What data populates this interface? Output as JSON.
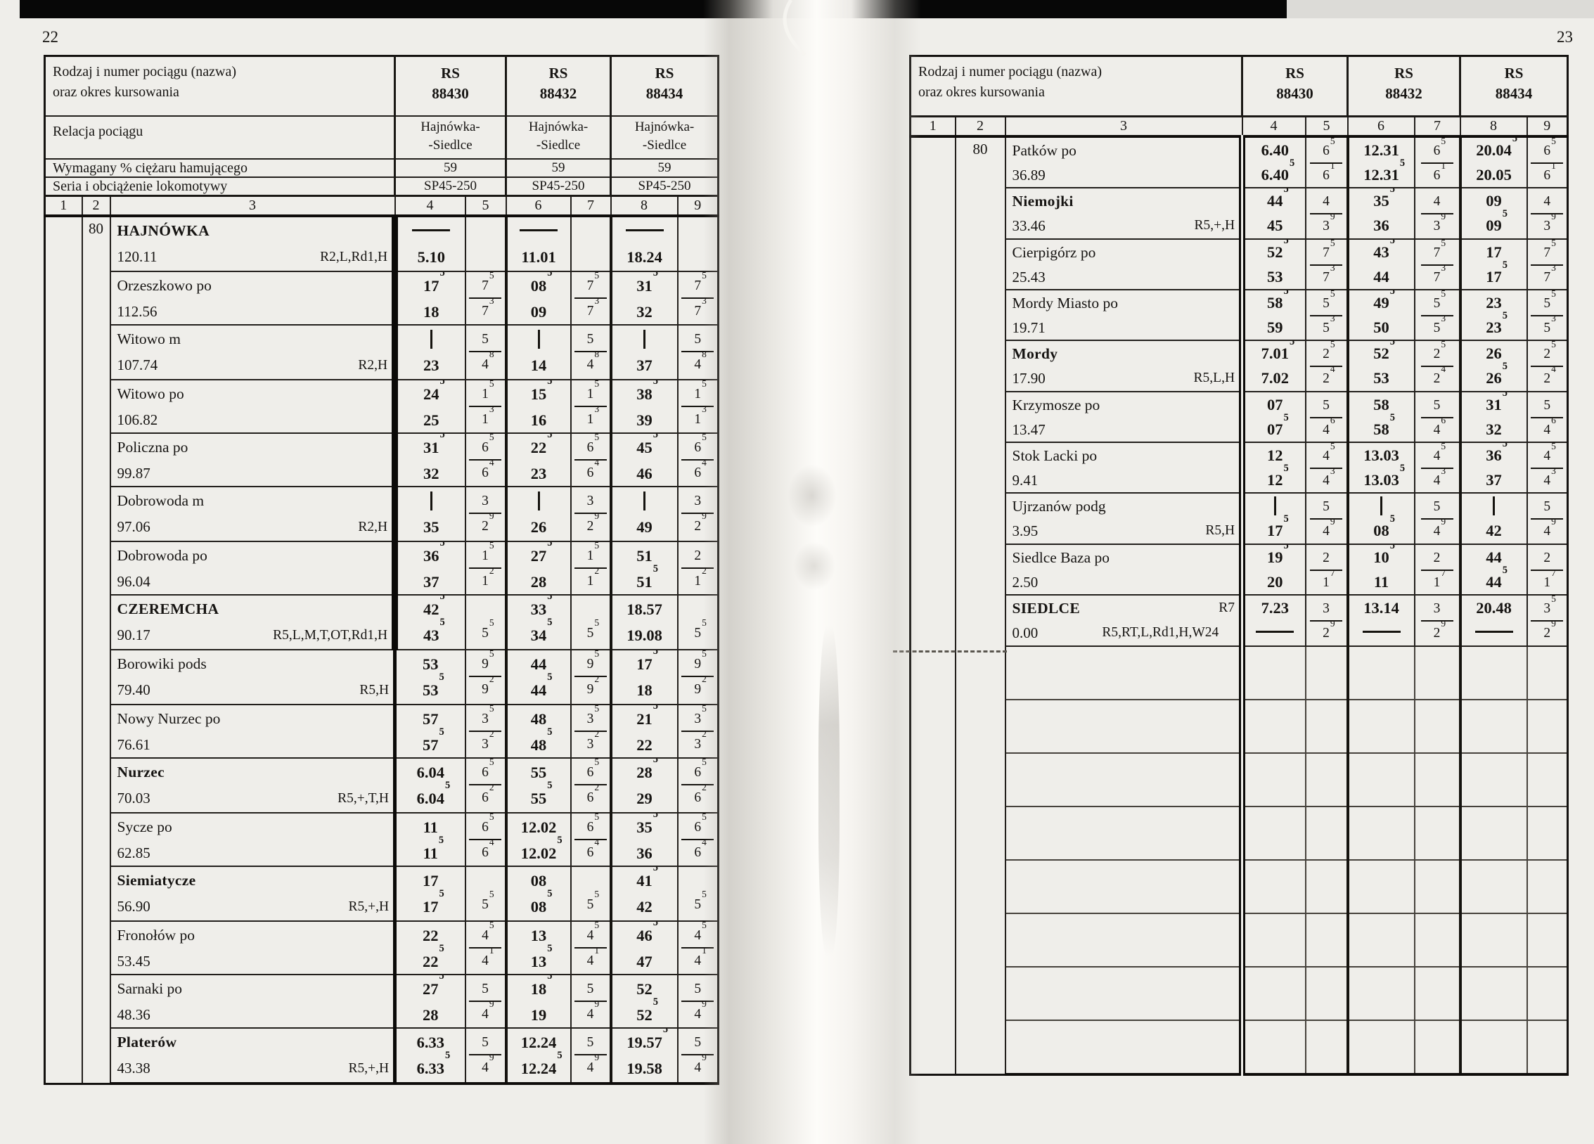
{
  "scan": {
    "left_page_number": "22",
    "right_page_number": "23"
  },
  "page_left": {
    "header": {
      "label_line1": "Rodzaj i numer pociągu (nazwa)",
      "label_line2": "oraz okres kursowania",
      "trains": [
        {
          "cls": "RS",
          "num": "88430"
        },
        {
          "cls": "RS",
          "num": "88432"
        },
        {
          "cls": "RS",
          "num": "88434"
        }
      ],
      "relacja_label": "Relacja pociągu",
      "relacja": [
        [
          "Hajnówka-",
          "-Siedlce"
        ],
        [
          "Hajnówka-",
          "-Siedlce"
        ],
        [
          "Hajnówka-",
          "-Siedlce"
        ]
      ],
      "brake_label": "Wymagany % ciężaru hamującego",
      "brake": [
        "59",
        "59",
        "59"
      ],
      "loco_label": "Seria i obciążenie lokomotywy",
      "loco": [
        "SP45-250",
        "SP45-250",
        "SP45-250"
      ],
      "col_numbers": [
        "1",
        "2",
        "3",
        "4",
        "5",
        "6",
        "7",
        "8",
        "9"
      ]
    },
    "line_number": "80",
    "rows": [
      {
        "name": "HAJNÓWKA",
        "bold": true,
        "name_remark": "",
        "km": "120.11",
        "km_remark": "R2,L,Rd1,H",
        "t": [
          [
            "——",
            "5.10"
          ],
          [
            "",
            ""
          ],
          [
            "——",
            "11.01"
          ],
          [
            "",
            ""
          ],
          [
            "——",
            "18.24"
          ],
          [
            "",
            ""
          ]
        ]
      },
      {
        "name": "Orzeszkowo po",
        "bold": false,
        "name_remark": "",
        "km": "112.56",
        "km_remark": "",
        "t": [
          [
            "17^5",
            "18"
          ],
          [
            "7^5",
            "7^3"
          ],
          [
            "08^5",
            "09"
          ],
          [
            "7^5",
            "7^3"
          ],
          [
            "31^5",
            "32"
          ],
          [
            "7^5",
            "7^3"
          ]
        ]
      },
      {
        "name": "Witowo m",
        "bold": false,
        "name_remark": "",
        "km": "107.74",
        "km_remark": "R2,H",
        "t": [
          [
            "|",
            "23"
          ],
          [
            "5",
            "4^8"
          ],
          [
            "|",
            "14"
          ],
          [
            "5",
            "4^8"
          ],
          [
            "|",
            "37"
          ],
          [
            "5",
            "4^8"
          ]
        ]
      },
      {
        "name": "Witowo po",
        "bold": false,
        "name_remark": "",
        "km": "106.82",
        "km_remark": "",
        "t": [
          [
            "24^5",
            "25"
          ],
          [
            "1^5",
            "1^3"
          ],
          [
            "15^5",
            "16"
          ],
          [
            "1^5",
            "1^3"
          ],
          [
            "38^5",
            "39"
          ],
          [
            "1^5",
            "1^3"
          ]
        ]
      },
      {
        "name": "Policzna po",
        "bold": false,
        "name_remark": "",
        "km": "99.87",
        "km_remark": "",
        "t": [
          [
            "31^5",
            "32"
          ],
          [
            "6^5",
            "6^4"
          ],
          [
            "22^5",
            "23"
          ],
          [
            "6^5",
            "6^4"
          ],
          [
            "45^5",
            "46"
          ],
          [
            "6^5",
            "6^4"
          ]
        ]
      },
      {
        "name": "Dobrowoda m",
        "bold": false,
        "name_remark": "",
        "km": "97.06",
        "km_remark": "R2,H",
        "t": [
          [
            "|",
            "35"
          ],
          [
            "3",
            "2^9"
          ],
          [
            "|",
            "26"
          ],
          [
            "3",
            "2^9"
          ],
          [
            "|",
            "49"
          ],
          [
            "3",
            "2^9"
          ]
        ]
      },
      {
        "name": "Dobrowoda po",
        "bold": false,
        "name_remark": "",
        "km": "96.04",
        "km_remark": "",
        "t": [
          [
            "36^5",
            "37"
          ],
          [
            "1^5",
            "1^2"
          ],
          [
            "27^5",
            "28"
          ],
          [
            "1^5",
            "1^2"
          ],
          [
            "51",
            "51^5"
          ],
          [
            "2",
            "1^2"
          ]
        ]
      },
      {
        "name": "CZEREMCHA",
        "bold": true,
        "name_remark": "",
        "km": "90.17",
        "km_remark": "R5,L,M,T,OT,Rd1,H",
        "t": [
          [
            "42^5",
            "43^5"
          ],
          [
            "",
            "5^5"
          ],
          [
            "33^5",
            "34^5"
          ],
          [
            "",
            "5^5"
          ],
          [
            "18.57",
            "19.08"
          ],
          [
            "",
            "5^5"
          ]
        ]
      },
      {
        "name": "Borowiki pods",
        "bold": false,
        "name_remark": "",
        "km": "79.40",
        "km_remark": "R5,H",
        "t": [
          [
            "53",
            "53^5"
          ],
          [
            "9^5",
            "9^2"
          ],
          [
            "44",
            "44^5"
          ],
          [
            "9^5",
            "9^2"
          ],
          [
            "17^5",
            "18"
          ],
          [
            "9^5",
            "9^2"
          ]
        ]
      },
      {
        "name": "Nowy Nurzec po",
        "bold": false,
        "name_remark": "",
        "km": "76.61",
        "km_remark": "",
        "t": [
          [
            "57",
            "57^5"
          ],
          [
            "3^5",
            "3^2"
          ],
          [
            "48",
            "48^5"
          ],
          [
            "3^5",
            "3^2"
          ],
          [
            "21^5",
            "22"
          ],
          [
            "3^5",
            "3^2"
          ]
        ]
      },
      {
        "name": "Nurzec",
        "bold": true,
        "name_remark": "",
        "km": "70.03",
        "km_remark": "R5,+,T,H",
        "t": [
          [
            "6.04",
            "6.04^5"
          ],
          [
            "6^5",
            "6^2"
          ],
          [
            "55",
            "55^5"
          ],
          [
            "6^5",
            "6^2"
          ],
          [
            "28^5",
            "29"
          ],
          [
            "6^5",
            "6^2"
          ]
        ]
      },
      {
        "name": "Sycze po",
        "bold": false,
        "name_remark": "",
        "km": "62.85",
        "km_remark": "",
        "t": [
          [
            "11",
            "11^5"
          ],
          [
            "6^5",
            "6^4"
          ],
          [
            "12.02",
            "12.02^5"
          ],
          [
            "6^5",
            "6^4"
          ],
          [
            "35^5",
            "36"
          ],
          [
            "6^5",
            "6^4"
          ]
        ]
      },
      {
        "name": "Siemiatycze",
        "bold": true,
        "name_remark": "",
        "km": "56.90",
        "km_remark": "R5,+,H",
        "t": [
          [
            "17",
            "17^5"
          ],
          [
            "",
            "5^5"
          ],
          [
            "08",
            "08^5"
          ],
          [
            "",
            "5^5"
          ],
          [
            "41^5",
            "42"
          ],
          [
            "",
            "5^5"
          ]
        ]
      },
      {
        "name": "Fronołów po",
        "bold": false,
        "name_remark": "",
        "km": "53.45",
        "km_remark": "",
        "t": [
          [
            "22",
            "22^5"
          ],
          [
            "4^5",
            "4^1"
          ],
          [
            "13",
            "13^5"
          ],
          [
            "4^5",
            "4^1"
          ],
          [
            "46^5",
            "47"
          ],
          [
            "4^5",
            "4^1"
          ]
        ]
      },
      {
        "name": "Sarnaki po",
        "bold": false,
        "name_remark": "",
        "km": "48.36",
        "km_remark": "",
        "t": [
          [
            "27^5",
            "28"
          ],
          [
            "5",
            "4^9"
          ],
          [
            "18^5",
            "19"
          ],
          [
            "5",
            "4^9"
          ],
          [
            "52",
            "52^5"
          ],
          [
            "5",
            "4^9"
          ]
        ]
      },
      {
        "name": "Platerów",
        "bold": true,
        "name_remark": "",
        "km": "43.38",
        "km_remark": "R5,+,H",
        "t": [
          [
            "6.33",
            "6.33^5"
          ],
          [
            "5",
            "4^9"
          ],
          [
            "12.24",
            "12.24^5"
          ],
          [
            "5",
            "4^9"
          ],
          [
            "19.57^5",
            "19.58"
          ],
          [
            "5",
            "4^9"
          ]
        ]
      }
    ]
  },
  "page_right": {
    "header": {
      "label_line1": "Rodzaj i numer pociągu (nazwa)",
      "label_line2": "oraz okres kursowania",
      "trains": [
        {
          "cls": "RS",
          "num": "88430"
        },
        {
          "cls": "RS",
          "num": "88432"
        },
        {
          "cls": "RS",
          "num": "88434"
        }
      ],
      "col_numbers": [
        "1",
        "2",
        "3",
        "4",
        "5",
        "6",
        "7",
        "8",
        "9"
      ]
    },
    "line_number": "80",
    "empty_rows": 8,
    "rows": [
      {
        "name": "Patków po",
        "bold": false,
        "name_remark": "",
        "km": "36.89",
        "km_remark": "",
        "t": [
          [
            "6.40",
            "6.40^5"
          ],
          [
            "6^5",
            "6^1"
          ],
          [
            "12.31",
            "12.31^5"
          ],
          [
            "6^5",
            "6^1"
          ],
          [
            "20.04^5",
            "20.05"
          ],
          [
            "6^5",
            "6^1"
          ]
        ]
      },
      {
        "name": "Niemojki",
        "bold": true,
        "name_remark": "",
        "km": "33.46",
        "km_remark": "R5,+,H",
        "t": [
          [
            "44^5",
            "45"
          ],
          [
            "4",
            "3^9"
          ],
          [
            "35^5",
            "36"
          ],
          [
            "4",
            "3^9"
          ],
          [
            "09",
            "09^5"
          ],
          [
            "4",
            "3^9"
          ]
        ]
      },
      {
        "name": "Cierpigórz po",
        "bold": false,
        "name_remark": "",
        "km": "25.43",
        "km_remark": "",
        "t": [
          [
            "52^5",
            "53"
          ],
          [
            "7^5",
            "7^3"
          ],
          [
            "43^5",
            "44"
          ],
          [
            "7^5",
            "7^3"
          ],
          [
            "17",
            "17^5"
          ],
          [
            "7^5",
            "7^3"
          ]
        ]
      },
      {
        "name": "Mordy Miasto po",
        "bold": false,
        "name_remark": "",
        "km": "19.71",
        "km_remark": "",
        "t": [
          [
            "58^5",
            "59"
          ],
          [
            "5^5",
            "5^3"
          ],
          [
            "49^5",
            "50"
          ],
          [
            "5^5",
            "5^3"
          ],
          [
            "23",
            "23^5"
          ],
          [
            "5^5",
            "5^3"
          ]
        ]
      },
      {
        "name": "Mordy",
        "bold": true,
        "name_remark": "",
        "km": "17.90",
        "km_remark": "R5,L,H",
        "t": [
          [
            "7.01^5",
            "7.02"
          ],
          [
            "2^5",
            "2^4"
          ],
          [
            "52^5",
            "53"
          ],
          [
            "2^5",
            "2^4"
          ],
          [
            "26",
            "26^5"
          ],
          [
            "2^5",
            "2^4"
          ]
        ]
      },
      {
        "name": "Krzymosze po",
        "bold": false,
        "name_remark": "",
        "km": "13.47",
        "km_remark": "",
        "t": [
          [
            "07",
            "07^5"
          ],
          [
            "5",
            "4^6"
          ],
          [
            "58",
            "58^5"
          ],
          [
            "5",
            "4^6"
          ],
          [
            "31^5",
            "32"
          ],
          [
            "5",
            "4^6"
          ]
        ]
      },
      {
        "name": "Stok Lacki po",
        "bold": false,
        "name_remark": "",
        "km": "9.41",
        "km_remark": "",
        "t": [
          [
            "12",
            "12^5"
          ],
          [
            "4^5",
            "4^3"
          ],
          [
            "13.03",
            "13.03^5"
          ],
          [
            "4^5",
            "4^3"
          ],
          [
            "36^5",
            "37"
          ],
          [
            "4^5",
            "4^3"
          ]
        ]
      },
      {
        "name": "Ujrzanów podg",
        "bold": false,
        "name_remark": "",
        "km": "3.95",
        "km_remark": "R5,H",
        "t": [
          [
            "|",
            "17^5"
          ],
          [
            "5",
            "4^9"
          ],
          [
            "|",
            "08^5"
          ],
          [
            "5",
            "4^9"
          ],
          [
            "|",
            "42"
          ],
          [
            "5",
            "4^9"
          ]
        ]
      },
      {
        "name": "Siedlce Baza po",
        "bold": false,
        "name_remark": "",
        "km": "2.50",
        "km_remark": "",
        "t": [
          [
            "19^5",
            "20"
          ],
          [
            "2",
            "1^7"
          ],
          [
            "10^5",
            "11"
          ],
          [
            "2",
            "1^7"
          ],
          [
            "44",
            "44^5"
          ],
          [
            "2",
            "1^7"
          ]
        ]
      },
      {
        "name": "SIEDLCE",
        "bold": true,
        "name_remark": "R7",
        "km": "0.00",
        "km_remark": "R5,RT,L,Rd1,H,W24",
        "t": [
          [
            "7.23",
            "——"
          ],
          [
            "3",
            "2^9"
          ],
          [
            "13.14",
            "——"
          ],
          [
            "3",
            "2^9"
          ],
          [
            "20.48",
            "——"
          ],
          [
            "3^5",
            "2^9"
          ]
        ]
      }
    ]
  }
}
